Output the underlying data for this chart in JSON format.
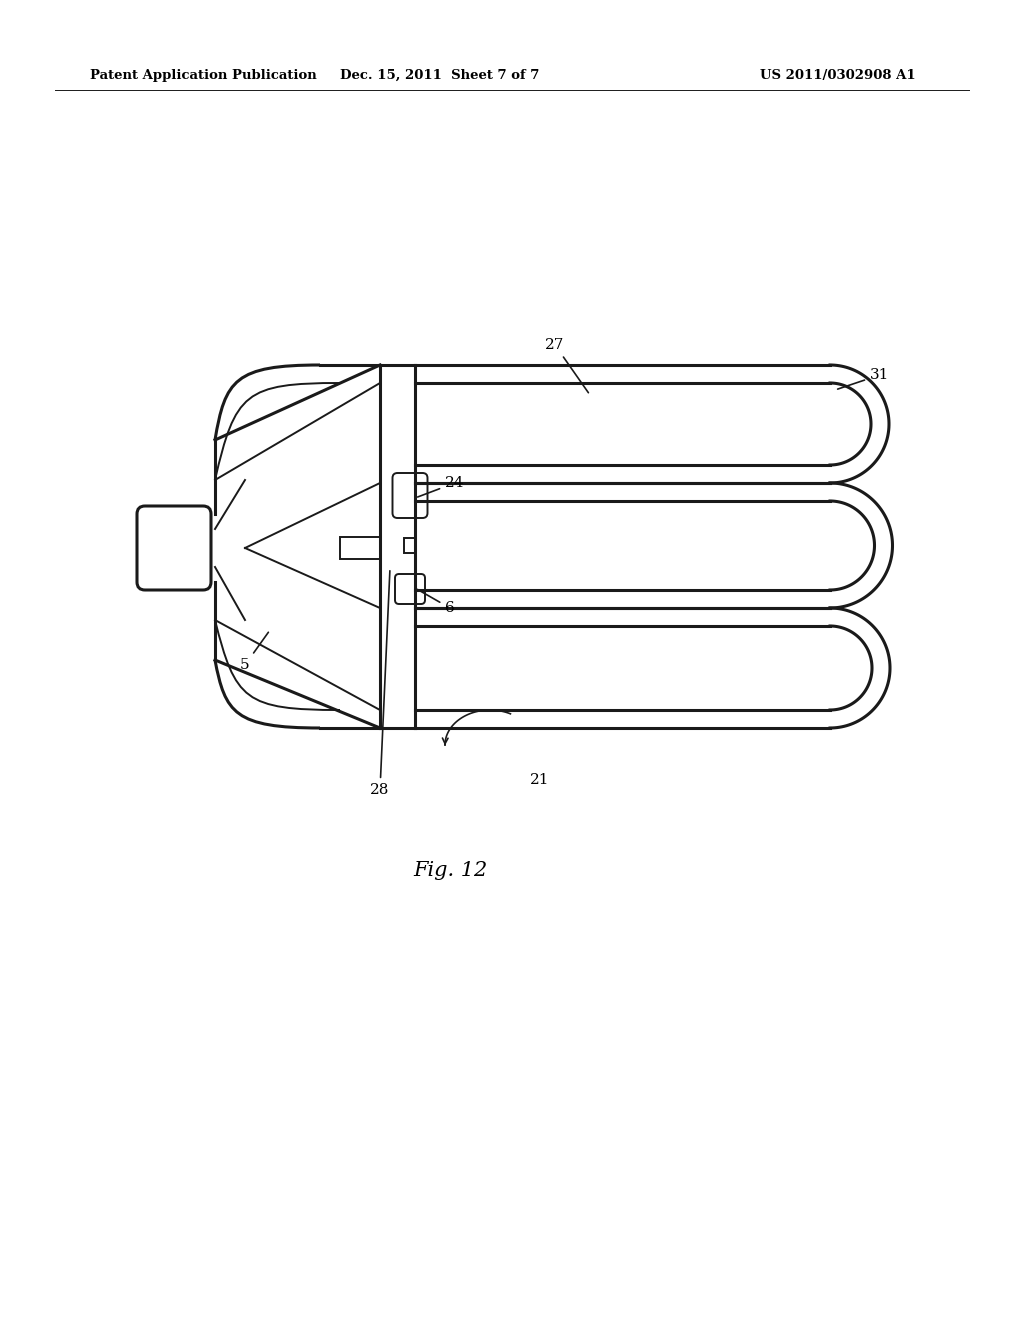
{
  "bg_color": "#ffffff",
  "line_color": "#1a1a1a",
  "header_left": "Patent Application Publication",
  "header_center": "Dec. 15, 2011  Sheet 7 of 7",
  "header_right": "US 2011/0302908 A1",
  "fig_label": "Fig. 12",
  "lw": 2.2,
  "lw_thin": 1.4,
  "lw_med": 1.8
}
